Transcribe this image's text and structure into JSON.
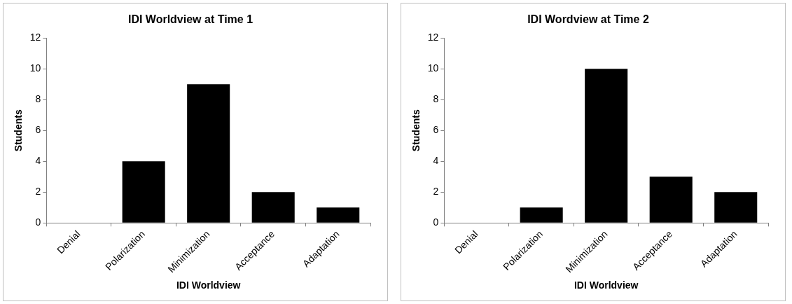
{
  "chart_data": [
    {
      "type": "bar",
      "title": "IDI Worldview at Time 1",
      "xlabel": "IDI Worldview",
      "ylabel": "Students",
      "categories": [
        "Denial",
        "Polarization",
        "Minimization",
        "Acceptance",
        "Adaptation"
      ],
      "values": [
        0,
        4,
        9,
        2,
        1
      ],
      "color": "#000000",
      "ylim": [
        0,
        12
      ],
      "yticks": [
        0,
        2,
        4,
        6,
        8,
        10,
        12
      ],
      "legend": false
    },
    {
      "type": "bar",
      "title": "IDI Wordview at Time 2",
      "xlabel": "IDI Worldview",
      "ylabel": "Students",
      "categories": [
        "Denial",
        "Polarization",
        "Minimization",
        "Acceptance",
        "Adaptation"
      ],
      "values": [
        0,
        1,
        10,
        3,
        2
      ],
      "color": "#000000",
      "ylim": [
        0,
        12
      ],
      "yticks": [
        0,
        2,
        4,
        6,
        8,
        10,
        12
      ],
      "legend": false
    }
  ]
}
